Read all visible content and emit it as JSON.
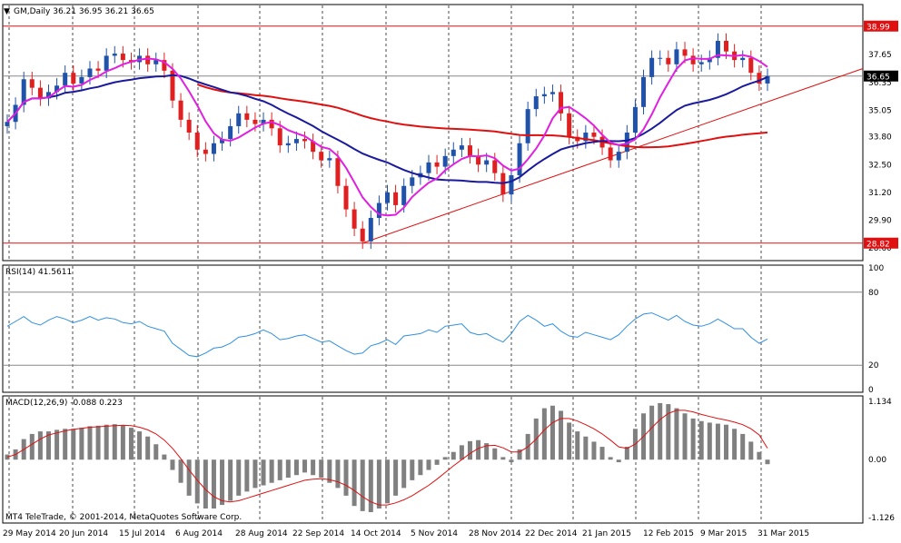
{
  "colors": {
    "background": "#ffffff",
    "bull_candle": "#1f52a8",
    "bear_candle": "#e02020",
    "ma_fast": "#e020e0",
    "ma_mid": "#1a1a9c",
    "ma_slow": "#e01010",
    "rsi_line": "#3090e0",
    "macd_hist": "#808080",
    "macd_signal": "#e01010",
    "level_line": "#e01010",
    "trendline": "#e01010",
    "grid": "#000000",
    "current_price_box": "#000000"
  },
  "chart_data": [
    {
      "type": "candlestick",
      "title": "GM,Daily  36.21 36.95 36.21 36.65",
      "ylim": [
        28.0,
        40.0
      ],
      "y_ticks": [
        "36.35",
        "35.05",
        "33.80",
        "32.50",
        "31.20",
        "29.90",
        "28.60",
        "37.65"
      ],
      "x_ticks": [
        "29 May 2014",
        "20 Jun 2014",
        "15 Jul 2014",
        "6 Aug 2014",
        "28 Aug 2014",
        "22 Sep 2014",
        "14 Oct 2014",
        "5 Nov 2014",
        "28 Nov 2014",
        "22 Dec 2014",
        "21 Jan 2015",
        "12 Feb 2015",
        "9 Mar 2015",
        "31 Mar 2015"
      ],
      "close": [
        34.5,
        35.3,
        36.5,
        36.1,
        35.6,
        35.9,
        36.2,
        36.8,
        36.3,
        36.6,
        37.0,
        36.9,
        37.6,
        37.7,
        37.4,
        37.3,
        37.6,
        37.2,
        37.4,
        36.9,
        35.5,
        34.6,
        34.0,
        33.2,
        33.0,
        33.5,
        33.7,
        34.3,
        34.9,
        34.6,
        34.4,
        34.6,
        34.2,
        33.4,
        33.5,
        33.7,
        33.6,
        33.1,
        32.7,
        32.8,
        31.5,
        30.4,
        29.5,
        28.9,
        30.0,
        30.7,
        31.2,
        30.6,
        31.5,
        31.9,
        32.1,
        32.6,
        32.4,
        32.9,
        33.2,
        33.4,
        32.9,
        32.5,
        32.7,
        32.1,
        31.1,
        32.0,
        33.5,
        35.1,
        35.7,
        35.8,
        35.9,
        34.9,
        33.8,
        33.6,
        34.0,
        33.8,
        33.3,
        32.7,
        33.1,
        34.0,
        35.2,
        36.6,
        37.5,
        37.5,
        37.2,
        37.9,
        37.6,
        37.2,
        37.3,
        37.5,
        38.3,
        37.8,
        37.4,
        37.5,
        36.8,
        36.3,
        36.65
      ],
      "rsi": {
        "label": "RSI(14) 41.5611",
        "ylim": [
          0,
          100
        ],
        "levels": [
          80,
          20
        ],
        "y_ticks": [
          "100",
          "80",
          "20",
          "0"
        ],
        "values": [
          52,
          56,
          60,
          55,
          53,
          57,
          60,
          58,
          55,
          57,
          60,
          57,
          59,
          58,
          55,
          54,
          56,
          52,
          50,
          48,
          38,
          33,
          28,
          27,
          30,
          34,
          35,
          38,
          43,
          44,
          46,
          49,
          46,
          41,
          42,
          44,
          45,
          42,
          39,
          40,
          36,
          32,
          29,
          30,
          36,
          38,
          41,
          37,
          44,
          45,
          46,
          49,
          47,
          52,
          53,
          54,
          47,
          45,
          46,
          42,
          39,
          46,
          56,
          61,
          57,
          52,
          54,
          48,
          44,
          43,
          47,
          45,
          43,
          41,
          45,
          52,
          58,
          62,
          63,
          60,
          57,
          61,
          56,
          53,
          52,
          54,
          58,
          54,
          50,
          50,
          43,
          38,
          41.56
        ]
      },
      "macd": {
        "label": "MACD(12,26,9) -0.088 0.223",
        "ylim": [
          -1.126,
          1.134
        ],
        "y_ticks": [
          "1.134",
          "0.00",
          "-1.126"
        ],
        "histogram": [
          0.1,
          0.2,
          0.4,
          0.5,
          0.55,
          0.55,
          0.58,
          0.6,
          0.6,
          0.62,
          0.65,
          0.66,
          0.68,
          0.69,
          0.67,
          0.62,
          0.55,
          0.45,
          0.3,
          0.1,
          -0.2,
          -0.45,
          -0.7,
          -0.85,
          -0.95,
          -0.95,
          -0.88,
          -0.8,
          -0.7,
          -0.62,
          -0.55,
          -0.5,
          -0.45,
          -0.4,
          -0.35,
          -0.3,
          -0.25,
          -0.3,
          -0.35,
          -0.45,
          -0.55,
          -0.7,
          -0.9,
          -1.0,
          -1.02,
          -0.95,
          -0.85,
          -0.7,
          -0.55,
          -0.4,
          -0.3,
          -0.2,
          -0.1,
          0.05,
          0.15,
          0.28,
          0.36,
          0.38,
          0.32,
          0.22,
          0.05,
          -0.05,
          0.2,
          0.5,
          0.8,
          1.0,
          1.05,
          0.95,
          0.72,
          0.55,
          0.45,
          0.35,
          0.25,
          0.05,
          -0.05,
          0.25,
          0.6,
          0.9,
          1.05,
          1.1,
          1.08,
          1.0,
          0.9,
          0.8,
          0.75,
          0.72,
          0.7,
          0.68,
          0.6,
          0.5,
          0.35,
          0.15,
          -0.088
        ],
        "signal": [
          0.05,
          0.1,
          0.2,
          0.3,
          0.4,
          0.48,
          0.52,
          0.56,
          0.59,
          0.61,
          0.63,
          0.64,
          0.65,
          0.66,
          0.67,
          0.66,
          0.63,
          0.58,
          0.5,
          0.38,
          0.22,
          0.02,
          -0.2,
          -0.4,
          -0.58,
          -0.72,
          -0.8,
          -0.82,
          -0.8,
          -0.75,
          -0.7,
          -0.65,
          -0.6,
          -0.55,
          -0.5,
          -0.45,
          -0.4,
          -0.38,
          -0.37,
          -0.39,
          -0.43,
          -0.5,
          -0.6,
          -0.72,
          -0.82,
          -0.88,
          -0.88,
          -0.84,
          -0.78,
          -0.7,
          -0.6,
          -0.5,
          -0.38,
          -0.25,
          -0.12,
          0.0,
          0.12,
          0.22,
          0.27,
          0.28,
          0.23,
          0.15,
          0.15,
          0.25,
          0.4,
          0.58,
          0.72,
          0.8,
          0.8,
          0.75,
          0.68,
          0.6,
          0.5,
          0.38,
          0.25,
          0.22,
          0.3,
          0.45,
          0.62,
          0.78,
          0.9,
          0.96,
          0.96,
          0.93,
          0.88,
          0.84,
          0.8,
          0.77,
          0.73,
          0.68,
          0.6,
          0.48,
          0.223
        ]
      },
      "levels": [
        {
          "label": "38.99",
          "value": 38.99
        },
        {
          "label": "28.82",
          "value": 28.82
        }
      ],
      "current_price_label": "36.65",
      "current_price": 36.65,
      "trendline": {
        "from": [
          28.82,
          71
        ],
        "to": [
          37.0,
          120
        ]
      },
      "credit": "MT4 TeleTrade, © 2001-2014, MetaQuotes Software Corp."
    }
  ]
}
